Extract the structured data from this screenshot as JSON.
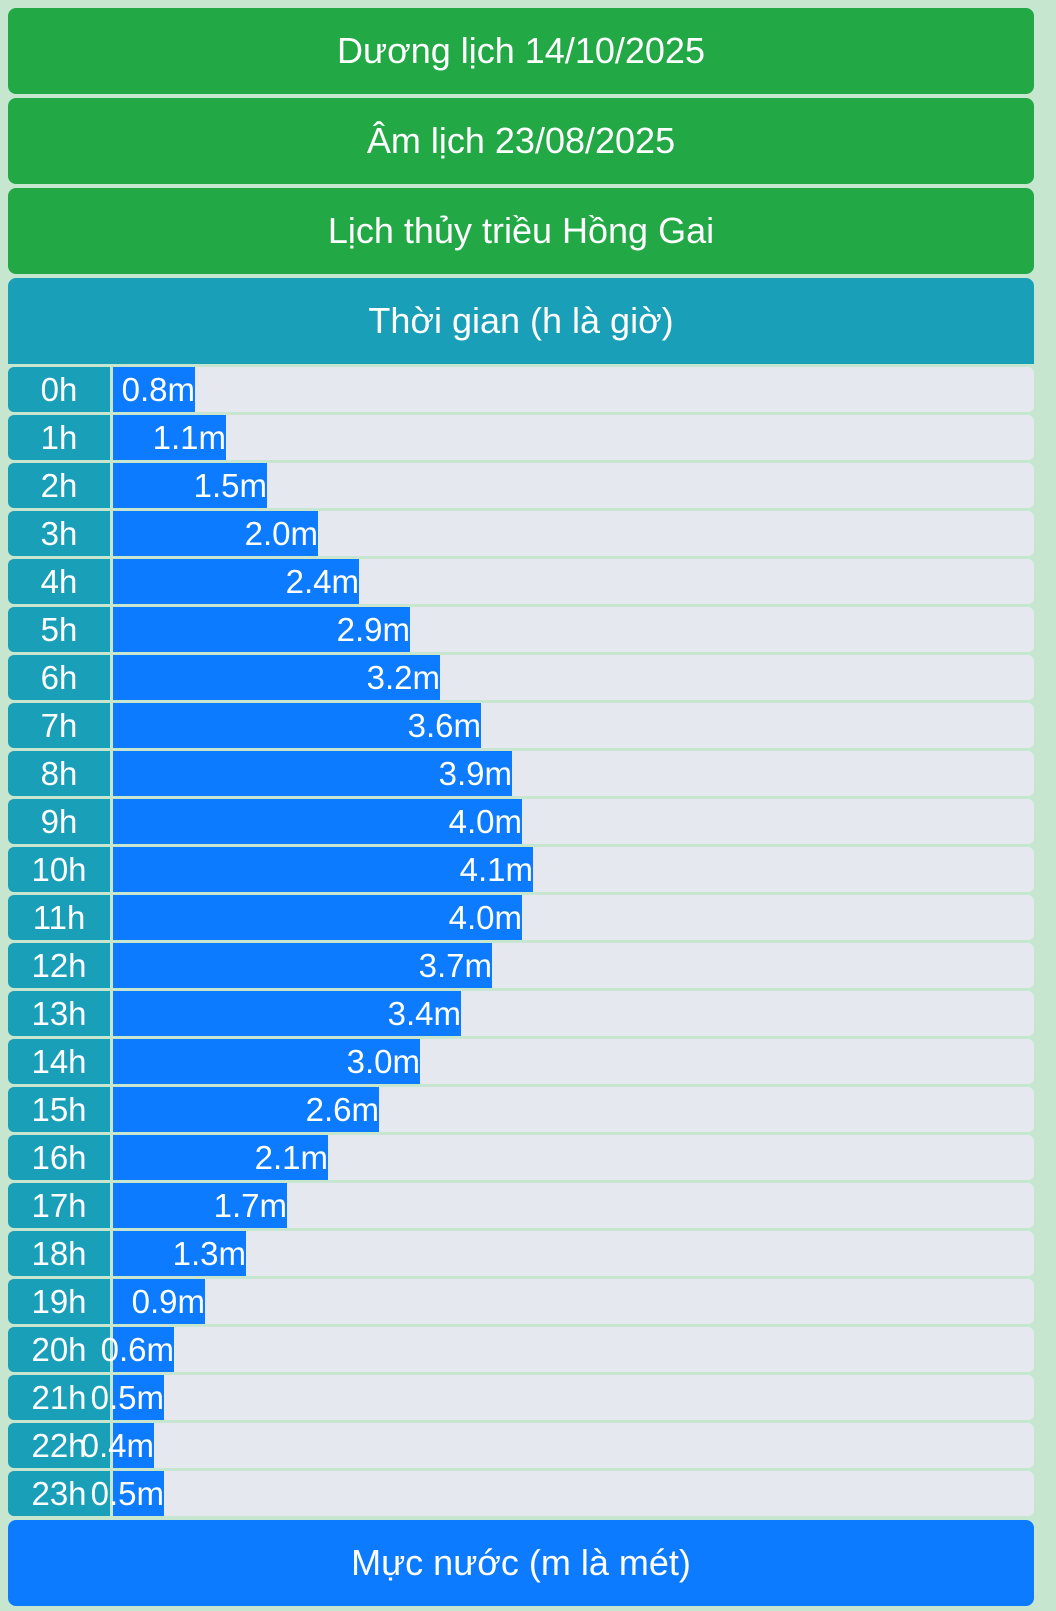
{
  "headers": {
    "solar_date": "Dương lịch 14/10/2025",
    "lunar_date": "Âm lịch 23/08/2025",
    "title": "Lịch thủy triều Hồng Gai",
    "time_axis": "Thời gian (h là giờ)",
    "level_axis": "Mực nước (m là mét)"
  },
  "colors": {
    "header_green": "#22a845",
    "hour_teal": "#1a9fb8",
    "bar_blue": "#0d7bff",
    "track_gray": "#e5e8ee"
  },
  "chart_data": {
    "type": "bar",
    "orientation": "horizontal",
    "categories": [
      "0h",
      "1h",
      "2h",
      "3h",
      "4h",
      "5h",
      "6h",
      "7h",
      "8h",
      "9h",
      "10h",
      "11h",
      "12h",
      "13h",
      "14h",
      "15h",
      "16h",
      "17h",
      "18h",
      "19h",
      "20h",
      "21h",
      "22h",
      "23h"
    ],
    "values": [
      0.8,
      1.1,
      1.5,
      2.0,
      2.4,
      2.9,
      3.2,
      3.6,
      3.9,
      4.0,
      4.1,
      4.0,
      3.7,
      3.4,
      3.0,
      2.6,
      2.1,
      1.7,
      1.3,
      0.9,
      0.6,
      0.5,
      0.4,
      0.5
    ],
    "value_labels": [
      "0.8m",
      "1.1m",
      "1.5m",
      "2.0m",
      "2.4m",
      "2.9m",
      "3.2m",
      "3.6m",
      "3.9m",
      "4.0m",
      "4.1m",
      "4.0m",
      "3.7m",
      "3.4m",
      "3.0m",
      "2.6m",
      "2.1m",
      "1.7m",
      "1.3m",
      "0.9m",
      "0.6m",
      "0.5m",
      "0.4m",
      "0.5m"
    ],
    "xlabel": "Mực nước (m là mét)",
    "ylabel": "Thời gian (h là giờ)",
    "xlim": [
      0,
      9
    ]
  }
}
